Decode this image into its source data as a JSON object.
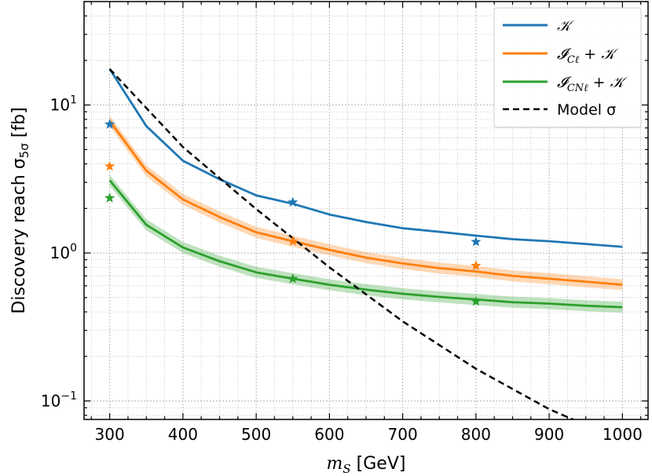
{
  "chart_data": {
    "type": "line",
    "xlabel_main": "m",
    "xlabel_sub": "S",
    "xlabel_unit": " [GeV]",
    "ylabel_main": "Discovery reach σ",
    "ylabel_sub": "5σ",
    "ylabel_unit": " [fb]",
    "xlim": [
      265,
      1035
    ],
    "ylim": [
      0.075,
      50
    ],
    "y_scale": "log",
    "x_ticks": [
      300,
      400,
      500,
      600,
      700,
      800,
      900,
      1000
    ],
    "y_tick_labels": [
      {
        "value": 0.1,
        "base": "10",
        "exp": "−1"
      },
      {
        "value": 1,
        "base": "10",
        "exp": "0"
      },
      {
        "value": 10,
        "base": "10",
        "exp": "1"
      }
    ],
    "grid": true,
    "legend_position": "top-right",
    "series": [
      {
        "name": "𝒦",
        "color": "#1f77b4",
        "band": false,
        "x": [
          300,
          350,
          400,
          450,
          500,
          550,
          600,
          650,
          700,
          750,
          800,
          850,
          900,
          950,
          1000
        ],
        "y": [
          17.5,
          7.2,
          4.2,
          3.15,
          2.45,
          2.15,
          1.82,
          1.62,
          1.47,
          1.39,
          1.31,
          1.24,
          1.2,
          1.15,
          1.1
        ],
        "markers": [
          {
            "x": 300,
            "y": 7.4
          },
          {
            "x": 550,
            "y": 2.2
          },
          {
            "x": 800,
            "y": 1.19
          }
        ]
      },
      {
        "name": "𝓘",
        "name_sub": "Cℓ",
        "name_suffix": " + 𝒦",
        "color": "#ff7f0e",
        "band": true,
        "x": [
          300,
          350,
          400,
          450,
          500,
          550,
          600,
          650,
          700,
          750,
          800,
          850,
          900,
          950,
          1000
        ],
        "y": [
          7.8,
          3.6,
          2.3,
          1.75,
          1.38,
          1.2,
          1.05,
          0.93,
          0.85,
          0.79,
          0.75,
          0.7,
          0.67,
          0.64,
          0.61
        ],
        "markers": [
          {
            "x": 300,
            "y": 3.85
          },
          {
            "x": 550,
            "y": 1.2
          },
          {
            "x": 800,
            "y": 0.82
          }
        ]
      },
      {
        "name": "𝓘",
        "name_sub": "CNℓ",
        "name_suffix": " + 𝒦",
        "color": "#2ca02c",
        "band": true,
        "x": [
          300,
          350,
          400,
          450,
          500,
          550,
          600,
          650,
          700,
          750,
          800,
          850,
          900,
          950,
          1000
        ],
        "y": [
          3.1,
          1.55,
          1.09,
          0.88,
          0.74,
          0.67,
          0.61,
          0.565,
          0.53,
          0.505,
          0.485,
          0.465,
          0.455,
          0.44,
          0.43
        ],
        "markers": [
          {
            "x": 300,
            "y": 2.35
          },
          {
            "x": 550,
            "y": 0.67
          },
          {
            "x": 800,
            "y": 0.47
          }
        ]
      },
      {
        "name": "Model σ",
        "color": "#000000",
        "dashed": true,
        "band": false,
        "x": [
          300,
          400,
          500,
          600,
          700,
          800,
          900,
          935
        ],
        "y": [
          17.5,
          5.2,
          1.98,
          0.8,
          0.345,
          0.165,
          0.088,
          0.074
        ],
        "markers": []
      }
    ]
  }
}
